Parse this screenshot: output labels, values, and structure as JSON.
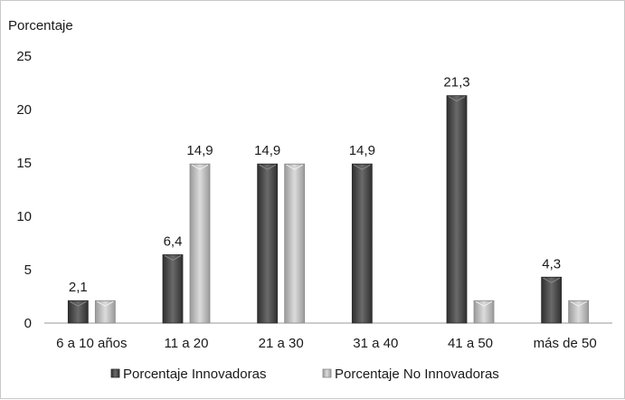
{
  "chart_data": {
    "type": "bar",
    "ylabel": "Porcentaje",
    "xlabel": "",
    "ylim": [
      0,
      25
    ],
    "yticks": [
      0,
      5,
      10,
      15,
      20,
      25
    ],
    "categories": [
      "6 a 10 años",
      "11 a 20",
      "21 a 30",
      "31 a 40",
      "41 a 50",
      "más de 50"
    ],
    "series": [
      {
        "name": "Porcentaje Innovadoras",
        "values": [
          2.1,
          6.4,
          14.9,
          14.9,
          21.3,
          4.3
        ],
        "labels": [
          "2,1",
          "6,4",
          "14,9",
          "14,9",
          "21,3",
          "4,3"
        ],
        "color": "#4a4a4a"
      },
      {
        "name": "Porcentaje No Innovadoras",
        "values": [
          2.1,
          14.9,
          14.9,
          0,
          2.1,
          2.1
        ],
        "labels": [
          "",
          "14,9",
          "",
          "",
          "",
          ""
        ],
        "color": "#b8b8b8"
      }
    ],
    "grid": false,
    "legend_position": "bottom"
  }
}
